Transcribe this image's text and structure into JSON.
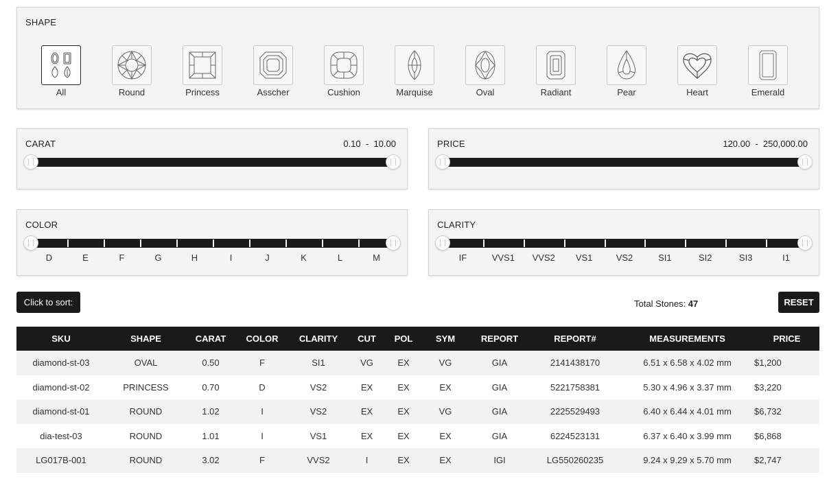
{
  "shape": {
    "title": "SHAPE",
    "items": [
      {
        "label": "All",
        "icon": "all-shapes-icon",
        "active": true
      },
      {
        "label": "Round",
        "icon": "round-diamond-icon"
      },
      {
        "label": "Princess",
        "icon": "princess-diamond-icon"
      },
      {
        "label": "Asscher",
        "icon": "asscher-diamond-icon"
      },
      {
        "label": "Cushion",
        "icon": "cushion-diamond-icon"
      },
      {
        "label": "Marquise",
        "icon": "marquise-diamond-icon"
      },
      {
        "label": "Oval",
        "icon": "oval-diamond-icon"
      },
      {
        "label": "Radiant",
        "icon": "radiant-diamond-icon"
      },
      {
        "label": "Pear",
        "icon": "pear-diamond-icon"
      },
      {
        "label": "Heart",
        "icon": "heart-diamond-icon"
      },
      {
        "label": "Emerald",
        "icon": "emerald-diamond-icon"
      }
    ]
  },
  "carat": {
    "title": "CARAT",
    "min": "0.10",
    "max": "10.00",
    "separator": "-"
  },
  "price": {
    "title": "PRICE",
    "min": "120.00",
    "max": "250,000.00",
    "separator": "-"
  },
  "color": {
    "title": "COLOR",
    "grades": [
      "D",
      "E",
      "F",
      "G",
      "H",
      "I",
      "J",
      "K",
      "L",
      "M"
    ]
  },
  "clarity": {
    "title": "CLARITY",
    "grades": [
      "IF",
      "VVS1",
      "VVS2",
      "VS1",
      "VS2",
      "SI1",
      "SI2",
      "SI3",
      "I1"
    ]
  },
  "toolbar": {
    "sort_label": "Click to sort:",
    "total_label": "Total Stones:",
    "total_count": "47",
    "reset_label": "RESET"
  },
  "table": {
    "columns": [
      "SKU",
      "SHAPE",
      "CARAT",
      "COLOR",
      "CLARITY",
      "CUT",
      "POL",
      "SYM",
      "REPORT",
      "REPORT#",
      "MEASUREMENTS",
      "PRICE"
    ],
    "rows": [
      [
        "diamond-st-03",
        "OVAL",
        "0.50",
        "F",
        "SI1",
        "VG",
        "EX",
        "VG",
        "GIA",
        "2141438170",
        "6.51 x 6.58 x 4.02 mm",
        "$1,200"
      ],
      [
        "diamond-st-02",
        "PRINCESS",
        "0.70",
        "D",
        "VS2",
        "EX",
        "EX",
        "EX",
        "GIA",
        "5221758381",
        "5.30 x 4.96 x 3.37 mm",
        "$3,220"
      ],
      [
        "diamond-st-01",
        "ROUND",
        "1.02",
        "I",
        "VS2",
        "EX",
        "EX",
        "VG",
        "GIA",
        "2225529493",
        "6.40 x 6.44 x 4.01 mm",
        "$6,732"
      ],
      [
        "dia-test-03",
        "ROUND",
        "1.01",
        "I",
        "VS1",
        "EX",
        "EX",
        "EX",
        "GIA",
        "6224523131",
        "6.37 x 6.40 x 3.99 mm",
        "$6,868"
      ],
      [
        "LG017B-001",
        "ROUND",
        "3.02",
        "F",
        "VVS2",
        "I",
        "EX",
        "EX",
        "IGI",
        "LG550260235",
        "9.24 x 9.29 x 5.70 mm",
        "$2,747"
      ]
    ]
  },
  "colors": {
    "accent": "#1a1a1a",
    "panel_bg": "#f4f4f4",
    "row_alt": "#f2f2f2"
  }
}
